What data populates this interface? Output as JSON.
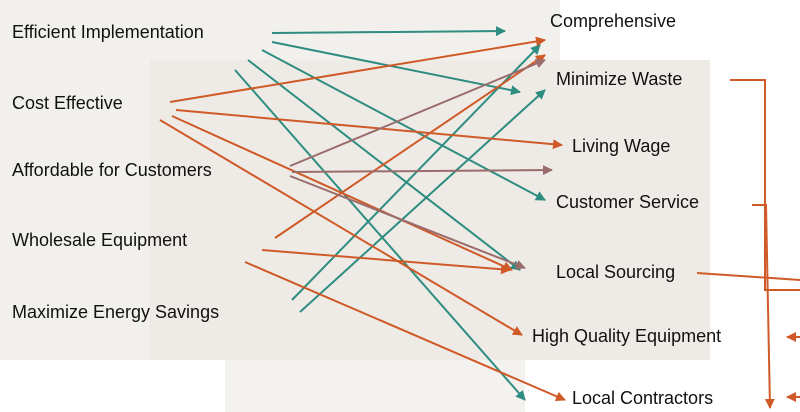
{
  "left_nodes": [
    {
      "label": "Efficient Implementation"
    },
    {
      "label": "Cost Effective"
    },
    {
      "label": "Affordable for Customers"
    },
    {
      "label": "Wholesale Equipment"
    },
    {
      "label": "Maximize Energy Savings"
    }
  ],
  "right_nodes": [
    {
      "label": "Comprehensive"
    },
    {
      "label": "Minimize Waste"
    },
    {
      "label": "Living Wage"
    },
    {
      "label": "Customer Service"
    },
    {
      "label": "Local Sourcing"
    },
    {
      "label": "High Quality Equipment"
    },
    {
      "label": "Local Contractors"
    }
  ]
}
